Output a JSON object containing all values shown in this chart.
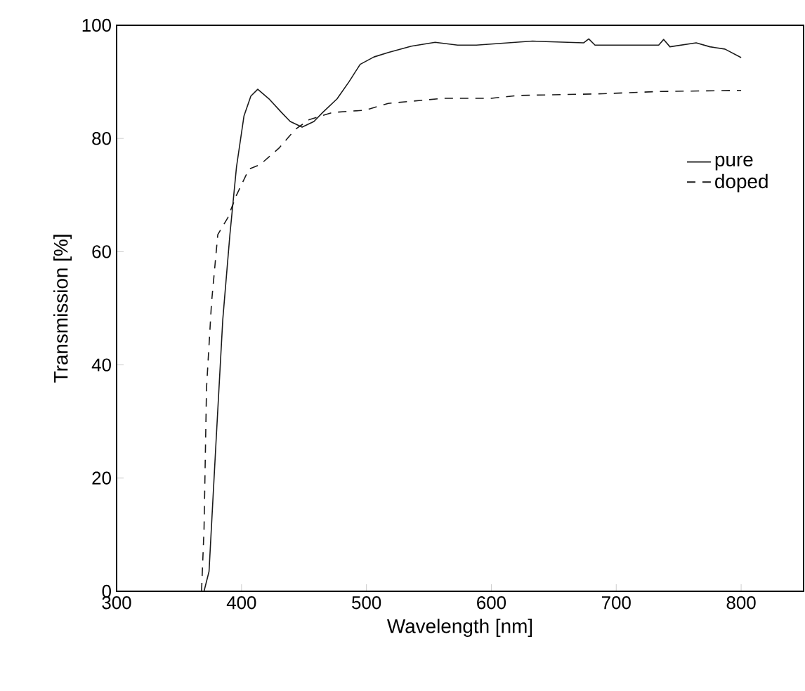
{
  "chart_data": {
    "type": "line",
    "xlabel": "Wavelength [nm]",
    "ylabel": "Transmission [%]",
    "xlim": [
      300,
      850
    ],
    "ylim": [
      0,
      100
    ],
    "xticks": [
      300,
      400,
      500,
      600,
      700,
      800
    ],
    "yticks": [
      0,
      20,
      40,
      60,
      80,
      100
    ],
    "grid": false,
    "legend": "right",
    "marker": "none",
    "series": [
      {
        "name": "pure",
        "color": "#1a1a1a",
        "line_style": "solid",
        "x": [
          370,
          374,
          379.5,
          385,
          390.7,
          396,
          402,
          407.5,
          413,
          422,
          432,
          439,
          448.5,
          458,
          465,
          476.5,
          486,
          495,
          506,
          517.5,
          536,
          555,
          573,
          588,
          633,
          674,
          678,
          683,
          734,
          738,
          743,
          764,
          775,
          787,
          800
        ],
        "values": [
          0,
          3.5,
          26,
          48,
          63,
          75,
          84,
          87.5,
          88.7,
          87,
          84.6,
          83,
          82,
          83,
          84.6,
          87,
          90,
          93.1,
          94.4,
          95.2,
          96.3,
          97,
          96.5,
          96.5,
          97.2,
          96.9,
          97.6,
          96.5,
          96.5,
          97.5,
          96.2,
          96.9,
          96.2,
          95.8,
          94.3
        ]
      },
      {
        "name": "doped",
        "color": "#1a1a1a",
        "line_style": "dashed",
        "x": [
          368,
          370,
          372,
          376,
          381,
          389,
          396,
          406,
          415,
          430,
          443,
          454,
          473,
          499,
          517.5,
          562,
          600,
          622,
          689,
          734,
          800
        ],
        "values": [
          0,
          11,
          36,
          51,
          63,
          66,
          70,
          74.6,
          75.4,
          78.3,
          81.6,
          83.3,
          84.6,
          85,
          86.2,
          87.1,
          87.1,
          87.6,
          87.9,
          88.3,
          88.5
        ]
      }
    ]
  }
}
